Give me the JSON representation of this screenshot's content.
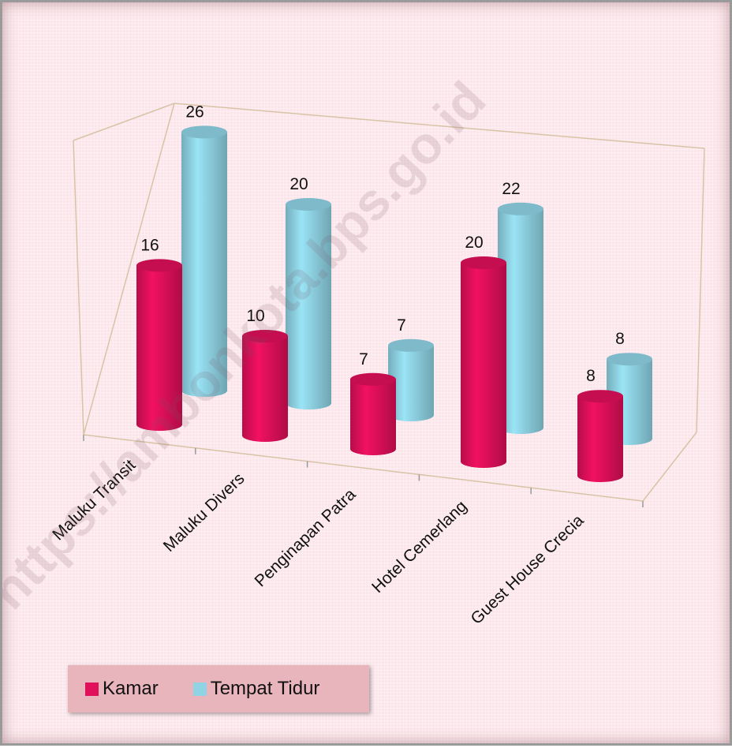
{
  "watermark": "https://ambonkota.bps.go.id",
  "chart_data": {
    "type": "bar",
    "style": "3d-cylinder",
    "title": "",
    "xlabel": "",
    "ylabel": "",
    "ylim": [
      0,
      30
    ],
    "grid": false,
    "legend_position": "bottom-left",
    "categories": [
      "Maluku Transit",
      "Maluku Divers",
      "Penginapan Patra",
      "Hotel Cemerlang",
      "Guest House Crecia"
    ],
    "series": [
      {
        "name": "Kamar",
        "color": "#e0105a",
        "values": [
          16,
          10,
          7,
          20,
          8
        ]
      },
      {
        "name": "Tempat Tidur",
        "color": "#8fd3e4",
        "values": [
          26,
          20,
          7,
          22,
          8
        ]
      }
    ]
  }
}
